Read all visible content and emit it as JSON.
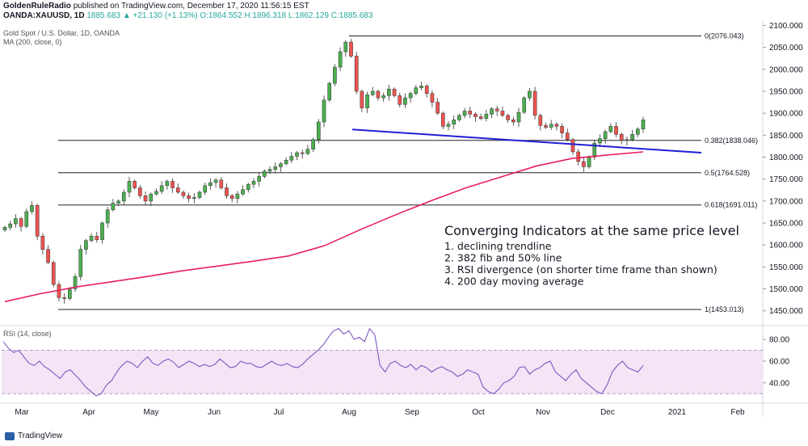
{
  "header": {
    "publisher": "GoldenRuleRadio",
    "published_text": "published on TradingView.com, December 17, 2020 11:56:15 EST",
    "symbol": "OANDA:XAUUSD, 1D",
    "change": "1885.683 ▲ +21.130 (+1.13%)",
    "ohlc": "O:1864.552 H:1896.318 L:1862.129 C:1885.683"
  },
  "legend": {
    "instrument": "Gold Spot / U.S. Dollar, 1D, OANDA",
    "ma": "MA (200, close, 0)",
    "rsi": "RSI (14, close)"
  },
  "footer": {
    "brand": "TradingView"
  },
  "annotation": {
    "title": "Converging Indicators at the same price level",
    "items": [
      "1. declining trendline",
      "2. 382 fib and 50% line",
      "3. RSI divergence (on shorter time frame than shown)",
      "4. 200 day moving average"
    ]
  },
  "colors": {
    "up": "#4caf50",
    "down": "#ef5350",
    "ma": "#e91e63",
    "trendline": "#1f1fd4",
    "rsi": "#7e57c2",
    "rsi_band": "#f3e5f5"
  },
  "chart_data": {
    "type": "candlestick",
    "price_axis": {
      "ylim": [
        1420,
        2110
      ],
      "ticks": [
        "2100.000",
        "2050.000",
        "2000.000",
        "1950.000",
        "1900.000",
        "1850.000",
        "1800.000",
        "1750.000",
        "1700.000",
        "1650.000",
        "1600.000",
        "1550.000",
        "1500.000",
        "1450.000"
      ]
    },
    "rsi_axis": {
      "ylim": [
        22,
        92
      ],
      "ticks": [
        "80.00",
        "60.00",
        "40.00"
      ],
      "band": [
        30,
        70
      ]
    },
    "time_axis": {
      "labels": [
        "Mar",
        "Apr",
        "May",
        "Jun",
        "Jul",
        "Aug",
        "Sep",
        "Oct",
        "Nov",
        "Dec",
        "2021",
        "Feb"
      ]
    },
    "fib_levels": [
      {
        "label": "0(2076.043)",
        "value": 2076.043
      },
      {
        "label": "0.382(1838.046)",
        "value": 1838.046
      },
      {
        "label": "0.5(1764.528)",
        "value": 1764.528
      },
      {
        "label": "0.618(1691.011)",
        "value": 1691.011
      },
      {
        "label": "1(1453.013)",
        "value": 1453.013
      }
    ],
    "trendline": {
      "from": [
        "Aug 11",
        1863
      ],
      "to": [
        "Jan 1",
        1810
      ]
    },
    "ma200_points": [
      1471,
      1489,
      1504,
      1516,
      1528,
      1541,
      1552,
      1563,
      1575,
      1598,
      1634,
      1668,
      1700,
      1730,
      1755,
      1780,
      1797,
      1805,
      1812
    ],
    "price_points": [
      1640,
      1648,
      1660,
      1642,
      1676,
      1690,
      1620,
      1590,
      1560,
      1510,
      1480,
      1478,
      1500,
      1528,
      1590,
      1610,
      1620,
      1612,
      1650,
      1680,
      1695,
      1700,
      1720,
      1745,
      1730,
      1712,
      1700,
      1716,
      1722,
      1735,
      1745,
      1730,
      1720,
      1712,
      1706,
      1708,
      1720,
      1735,
      1742,
      1748,
      1730,
      1712,
      1706,
      1716,
      1726,
      1738,
      1745,
      1756,
      1768,
      1772,
      1778,
      1785,
      1793,
      1802,
      1810,
      1808,
      1818,
      1840,
      1880,
      1930,
      1968,
      2005,
      2040,
      2062,
      2030,
      1950,
      1912,
      1942,
      1950,
      1935,
      1940,
      1955,
      1940,
      1920,
      1935,
      1945,
      1958,
      1962,
      1945,
      1925,
      1900,
      1870,
      1875,
      1885,
      1895,
      1905,
      1898,
      1892,
      1888,
      1898,
      1910,
      1905,
      1895,
      1885,
      1880,
      1902,
      1935,
      1950,
      1895,
      1872,
      1868,
      1875,
      1870,
      1855,
      1840,
      1812,
      1790,
      1778,
      1800,
      1832,
      1842,
      1858,
      1870,
      1852,
      1838,
      1840,
      1852,
      1864,
      1885
    ],
    "rsi_points": [
      78,
      72,
      68,
      70,
      64,
      58,
      56,
      60,
      55,
      52,
      48,
      44,
      50,
      52,
      47,
      42,
      36,
      32,
      28,
      30,
      38,
      42,
      50,
      56,
      60,
      58,
      54,
      60,
      64,
      58,
      56,
      60,
      62,
      59,
      54,
      57,
      60,
      58,
      55,
      57,
      55,
      57,
      62,
      58,
      54,
      55,
      60,
      58,
      58,
      55,
      54,
      57,
      60,
      57,
      56,
      58,
      55,
      54,
      57,
      62,
      66,
      70,
      75,
      82,
      88,
      90,
      85,
      88,
      80,
      82,
      78,
      90,
      84,
      56,
      50,
      58,
      60,
      56,
      54,
      57,
      52,
      56,
      54,
      50,
      53,
      55,
      52,
      50,
      46,
      48,
      52,
      50,
      48,
      36,
      32,
      30,
      34,
      40,
      42,
      46,
      54,
      55,
      48,
      52,
      54,
      58,
      60,
      50,
      46,
      42,
      48,
      52,
      44,
      40,
      36,
      32,
      30,
      38,
      50,
      56,
      60,
      54,
      52,
      50,
      56
    ]
  }
}
